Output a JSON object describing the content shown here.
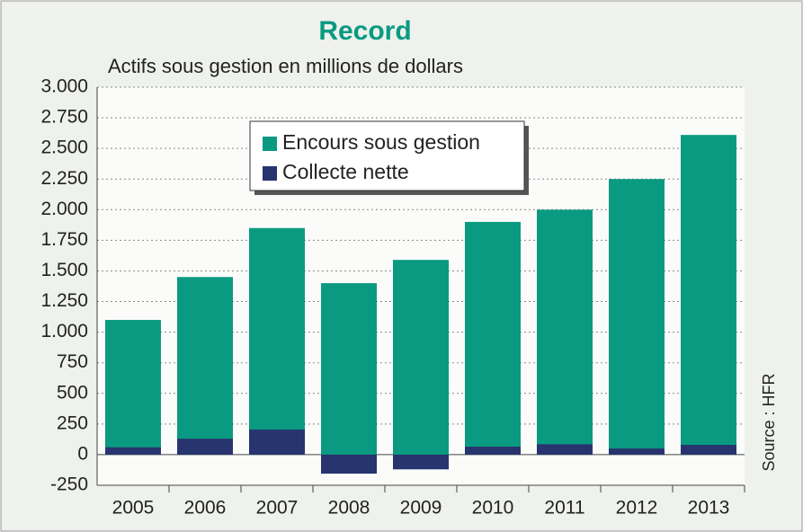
{
  "chart_data": {
    "type": "bar",
    "title": "Record",
    "subtitle": "Actifs sous gestion en millions de dollars",
    "source": "Source : HFR",
    "categories": [
      "2005",
      "2006",
      "2007",
      "2008",
      "2009",
      "2010",
      "2011",
      "2012",
      "2013"
    ],
    "series": [
      {
        "name": "Encours sous gestion",
        "color": "#0a9a82",
        "values": [
          1100,
          1450,
          1850,
          1400,
          1590,
          1900,
          2000,
          2250,
          2610
        ]
      },
      {
        "name": "Collecte nette",
        "color": "#27346e",
        "values": [
          60,
          130,
          205,
          -155,
          -120,
          65,
          85,
          50,
          80
        ]
      }
    ],
    "ylim": [
      -250,
      3000
    ],
    "yticks": [
      {
        "value": 3000,
        "label": "3.000"
      },
      {
        "value": 2750,
        "label": "2.750"
      },
      {
        "value": 2500,
        "label": "2.500"
      },
      {
        "value": 2250,
        "label": "2.250"
      },
      {
        "value": 2000,
        "label": "2.000"
      },
      {
        "value": 1750,
        "label": "1.750"
      },
      {
        "value": 1500,
        "label": "1.500"
      },
      {
        "value": 1250,
        "label": "1.250"
      },
      {
        "value": 1000,
        "label": "1.000"
      },
      750,
      500,
      250,
      0,
      -250
    ],
    "grid": true
  }
}
